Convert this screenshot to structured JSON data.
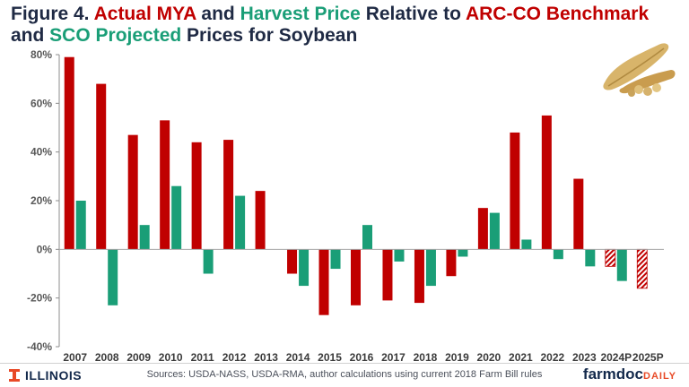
{
  "title": {
    "figure_label": "Figure 4.",
    "part1": "Actual MYA",
    "and1": " and ",
    "part2": "Harvest Price",
    "mid": " Relative to ",
    "part3": "ARC-CO Benchmark",
    "and2": "and ",
    "part4": "SCO Projected",
    "end": " Prices for Soybean"
  },
  "colors": {
    "red": "#c00000",
    "green": "#1a9e77",
    "title_dark": "#1f2a44",
    "axis": "#595959"
  },
  "chart_data": {
    "type": "bar",
    "categories": [
      "2007",
      "2008",
      "2009",
      "2010",
      "2011",
      "2012",
      "2013",
      "2014",
      "2015",
      "2016",
      "2017",
      "2018",
      "2019",
      "2020",
      "2021",
      "2022",
      "2023",
      "2024P",
      "2025P"
    ],
    "series": [
      {
        "color": "#c00000",
        "values": [
          79,
          68,
          47,
          53,
          44,
          45,
          24,
          -10,
          -27,
          -23,
          -21,
          -22,
          -11,
          17,
          48,
          55,
          29,
          -7,
          -16
        ],
        "projected_hatched_from_index": 17
      },
      {
        "color": "#1a9e77",
        "values": [
          20,
          -23,
          10,
          26,
          -10,
          22,
          null,
          -15,
          -8,
          10,
          -5,
          -15,
          -3,
          15,
          4,
          -4,
          -7,
          -13,
          null
        ]
      }
    ],
    "ylim": [
      -40,
      80
    ],
    "yticks": [
      -40,
      -20,
      0,
      20,
      40,
      60,
      80
    ],
    "ytick_labels": [
      "-40%",
      "-20%",
      "0%",
      "20%",
      "40%",
      "60%",
      "80%"
    ],
    "grid": false
  },
  "footer": {
    "source": "Sources: USDA-NASS, USDA-RMA, author calculations using current 2018 Farm Bill rules",
    "illinois": "ILLINOIS",
    "brand": "farmdoc",
    "brand_suffix": "DAILY"
  }
}
